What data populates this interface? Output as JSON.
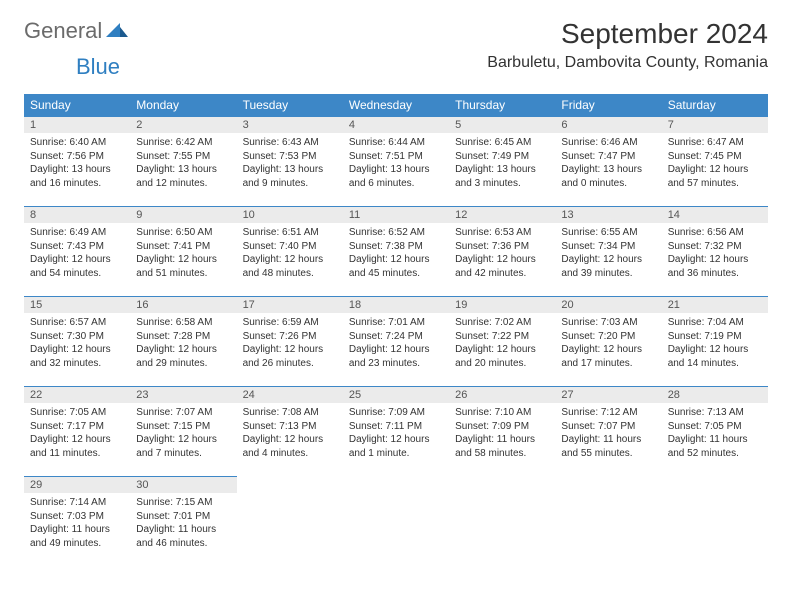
{
  "logo": {
    "general": "General",
    "blue": "Blue"
  },
  "title": "September 2024",
  "location": "Barbuletu, Dambovita County, Romania",
  "colors": {
    "header_bg": "#3d87c7",
    "header_text": "#ffffff",
    "daynum_bg": "#ebebeb",
    "logo_gray": "#6b6b6b",
    "logo_blue": "#2f7fc1",
    "border": "#3d87c7"
  },
  "day_headers": [
    "Sunday",
    "Monday",
    "Tuesday",
    "Wednesday",
    "Thursday",
    "Friday",
    "Saturday"
  ],
  "weeks": [
    [
      {
        "n": "1",
        "sr": "6:40 AM",
        "ss": "7:56 PM",
        "dl": "13 hours and 16 minutes."
      },
      {
        "n": "2",
        "sr": "6:42 AM",
        "ss": "7:55 PM",
        "dl": "13 hours and 12 minutes."
      },
      {
        "n": "3",
        "sr": "6:43 AM",
        "ss": "7:53 PM",
        "dl": "13 hours and 9 minutes."
      },
      {
        "n": "4",
        "sr": "6:44 AM",
        "ss": "7:51 PM",
        "dl": "13 hours and 6 minutes."
      },
      {
        "n": "5",
        "sr": "6:45 AM",
        "ss": "7:49 PM",
        "dl": "13 hours and 3 minutes."
      },
      {
        "n": "6",
        "sr": "6:46 AM",
        "ss": "7:47 PM",
        "dl": "13 hours and 0 minutes."
      },
      {
        "n": "7",
        "sr": "6:47 AM",
        "ss": "7:45 PM",
        "dl": "12 hours and 57 minutes."
      }
    ],
    [
      {
        "n": "8",
        "sr": "6:49 AM",
        "ss": "7:43 PM",
        "dl": "12 hours and 54 minutes."
      },
      {
        "n": "9",
        "sr": "6:50 AM",
        "ss": "7:41 PM",
        "dl": "12 hours and 51 minutes."
      },
      {
        "n": "10",
        "sr": "6:51 AM",
        "ss": "7:40 PM",
        "dl": "12 hours and 48 minutes."
      },
      {
        "n": "11",
        "sr": "6:52 AM",
        "ss": "7:38 PM",
        "dl": "12 hours and 45 minutes."
      },
      {
        "n": "12",
        "sr": "6:53 AM",
        "ss": "7:36 PM",
        "dl": "12 hours and 42 minutes."
      },
      {
        "n": "13",
        "sr": "6:55 AM",
        "ss": "7:34 PM",
        "dl": "12 hours and 39 minutes."
      },
      {
        "n": "14",
        "sr": "6:56 AM",
        "ss": "7:32 PM",
        "dl": "12 hours and 36 minutes."
      }
    ],
    [
      {
        "n": "15",
        "sr": "6:57 AM",
        "ss": "7:30 PM",
        "dl": "12 hours and 32 minutes."
      },
      {
        "n": "16",
        "sr": "6:58 AM",
        "ss": "7:28 PM",
        "dl": "12 hours and 29 minutes."
      },
      {
        "n": "17",
        "sr": "6:59 AM",
        "ss": "7:26 PM",
        "dl": "12 hours and 26 minutes."
      },
      {
        "n": "18",
        "sr": "7:01 AM",
        "ss": "7:24 PM",
        "dl": "12 hours and 23 minutes."
      },
      {
        "n": "19",
        "sr": "7:02 AM",
        "ss": "7:22 PM",
        "dl": "12 hours and 20 minutes."
      },
      {
        "n": "20",
        "sr": "7:03 AM",
        "ss": "7:20 PM",
        "dl": "12 hours and 17 minutes."
      },
      {
        "n": "21",
        "sr": "7:04 AM",
        "ss": "7:19 PM",
        "dl": "12 hours and 14 minutes."
      }
    ],
    [
      {
        "n": "22",
        "sr": "7:05 AM",
        "ss": "7:17 PM",
        "dl": "12 hours and 11 minutes."
      },
      {
        "n": "23",
        "sr": "7:07 AM",
        "ss": "7:15 PM",
        "dl": "12 hours and 7 minutes."
      },
      {
        "n": "24",
        "sr": "7:08 AM",
        "ss": "7:13 PM",
        "dl": "12 hours and 4 minutes."
      },
      {
        "n": "25",
        "sr": "7:09 AM",
        "ss": "7:11 PM",
        "dl": "12 hours and 1 minute."
      },
      {
        "n": "26",
        "sr": "7:10 AM",
        "ss": "7:09 PM",
        "dl": "11 hours and 58 minutes."
      },
      {
        "n": "27",
        "sr": "7:12 AM",
        "ss": "7:07 PM",
        "dl": "11 hours and 55 minutes."
      },
      {
        "n": "28",
        "sr": "7:13 AM",
        "ss": "7:05 PM",
        "dl": "11 hours and 52 minutes."
      }
    ],
    [
      {
        "n": "29",
        "sr": "7:14 AM",
        "ss": "7:03 PM",
        "dl": "11 hours and 49 minutes."
      },
      {
        "n": "30",
        "sr": "7:15 AM",
        "ss": "7:01 PM",
        "dl": "11 hours and 46 minutes."
      },
      null,
      null,
      null,
      null,
      null
    ]
  ],
  "labels": {
    "sunrise": "Sunrise:",
    "sunset": "Sunset:",
    "daylight": "Daylight:"
  }
}
